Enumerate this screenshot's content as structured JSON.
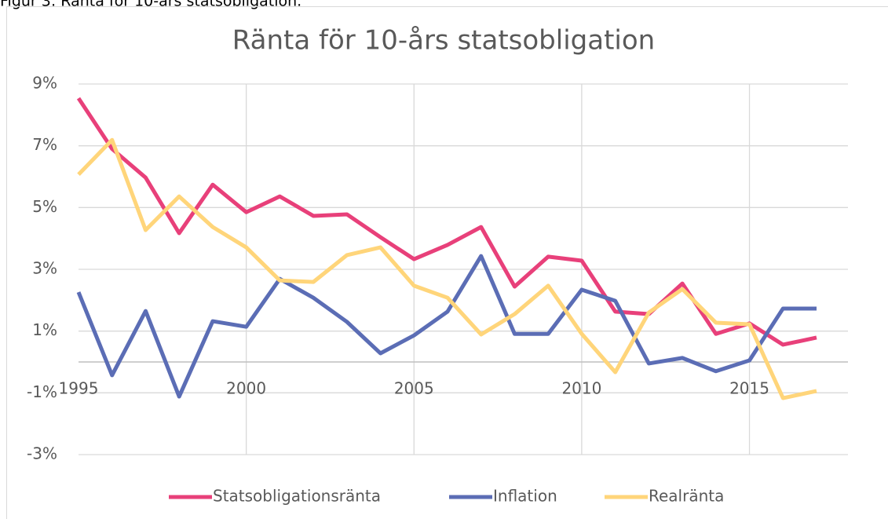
{
  "caption": "Figur 3: Ränta för 10-års statsobligation.",
  "chart_data": {
    "type": "line",
    "title": "Ränta för 10-års statsobligation",
    "x": [
      1995,
      1996,
      1997,
      1998,
      1999,
      2000,
      2001,
      2002,
      2003,
      2004,
      2005,
      2006,
      2007,
      2008,
      2009,
      2010,
      2011,
      2012,
      2013,
      2014,
      2015,
      2016,
      2017
    ],
    "series": [
      {
        "name": "Statsobligationsränta",
        "color": "#e8407a",
        "values": [
          8.54,
          6.9,
          5.97,
          4.17,
          5.74,
          4.85,
          5.36,
          4.73,
          4.78,
          4.04,
          3.33,
          3.79,
          4.37,
          2.44,
          3.41,
          3.28,
          1.63,
          1.55,
          2.54,
          0.91,
          1.25,
          0.56,
          0.79
        ]
      },
      {
        "name": "Inflation",
        "color": "#5b6db5",
        "values": [
          2.26,
          -0.43,
          1.65,
          -1.12,
          1.32,
          1.14,
          2.69,
          2.08,
          1.3,
          0.28,
          0.86,
          1.63,
          3.43,
          0.91,
          0.91,
          2.34,
          1.98,
          -0.05,
          0.13,
          -0.3,
          0.05,
          1.73,
          1.73
        ]
      },
      {
        "name": "Realränta",
        "color": "#ffd57a",
        "values": [
          6.07,
          7.19,
          4.27,
          5.36,
          4.37,
          3.71,
          2.64,
          2.59,
          3.46,
          3.71,
          2.47,
          2.08,
          0.89,
          1.55,
          2.47,
          0.91,
          -0.33,
          1.6,
          2.36,
          1.27,
          1.22,
          -1.17,
          -0.94
        ]
      }
    ],
    "xlim": [
      1995,
      2017
    ],
    "xticks": [
      1995,
      2000,
      2005,
      2010,
      2015
    ],
    "ylim": [
      -3,
      9
    ],
    "yticks": [
      {
        "value": -3,
        "label": "-3%"
      },
      {
        "value": -1,
        "label": "-1%"
      },
      {
        "value": 1,
        "label": "1%"
      },
      {
        "value": 3,
        "label": "3%"
      },
      {
        "value": 5,
        "label": "5%"
      },
      {
        "value": 7,
        "label": "7%"
      },
      {
        "value": 9,
        "label": "9%"
      }
    ],
    "grid": true,
    "legend": "bottom"
  }
}
